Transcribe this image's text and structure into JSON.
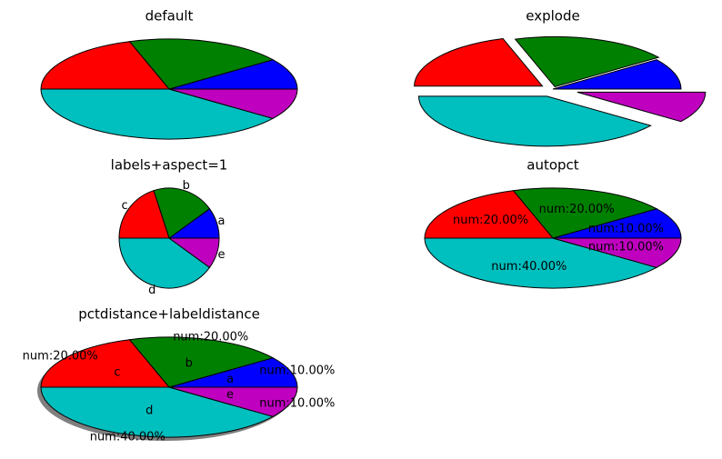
{
  "chart_data": [
    {
      "type": "pie",
      "title": "default",
      "values": [
        10,
        20,
        20,
        40,
        10
      ],
      "colors": [
        "#0000ff",
        "#008000",
        "#ff0000",
        "#00bfbf",
        "#bf00bf"
      ]
    },
    {
      "type": "pie",
      "title": "explode",
      "values": [
        10,
        20,
        20,
        40,
        10
      ],
      "colors": [
        "#0000ff",
        "#008000",
        "#ff0000",
        "#00bfbf",
        "#bf00bf"
      ],
      "explode": [
        0,
        0.05,
        0.1,
        0.15,
        0.2
      ]
    },
    {
      "type": "pie",
      "title": "labels+aspect=1",
      "values": [
        10,
        20,
        20,
        40,
        10
      ],
      "colors": [
        "#0000ff",
        "#008000",
        "#ff0000",
        "#00bfbf",
        "#bf00bf"
      ],
      "categories": [
        "a",
        "b",
        "c",
        "d",
        "e"
      ],
      "aspect": 1
    },
    {
      "type": "pie",
      "title": "autopct",
      "values": [
        10,
        20,
        20,
        40,
        10
      ],
      "colors": [
        "#0000ff",
        "#008000",
        "#ff0000",
        "#00bfbf",
        "#bf00bf"
      ],
      "value_labels": [
        "num:10.00%",
        "num:20.00%",
        "num:20.00%",
        "num:40.00%",
        "num:10.00%"
      ]
    },
    {
      "type": "pie",
      "title": "pctdistance+labeldistance",
      "values": [
        10,
        20,
        20,
        40,
        10
      ],
      "colors": [
        "#0000ff",
        "#008000",
        "#ff0000",
        "#00bfbf",
        "#bf00bf"
      ],
      "categories": [
        "a",
        "b",
        "c",
        "d",
        "e"
      ],
      "value_labels": [
        "num:10.00%",
        "num:20.00%",
        "num:20.00%",
        "num:40.00%",
        "num:10.00%"
      ],
      "shadow": true
    }
  ]
}
